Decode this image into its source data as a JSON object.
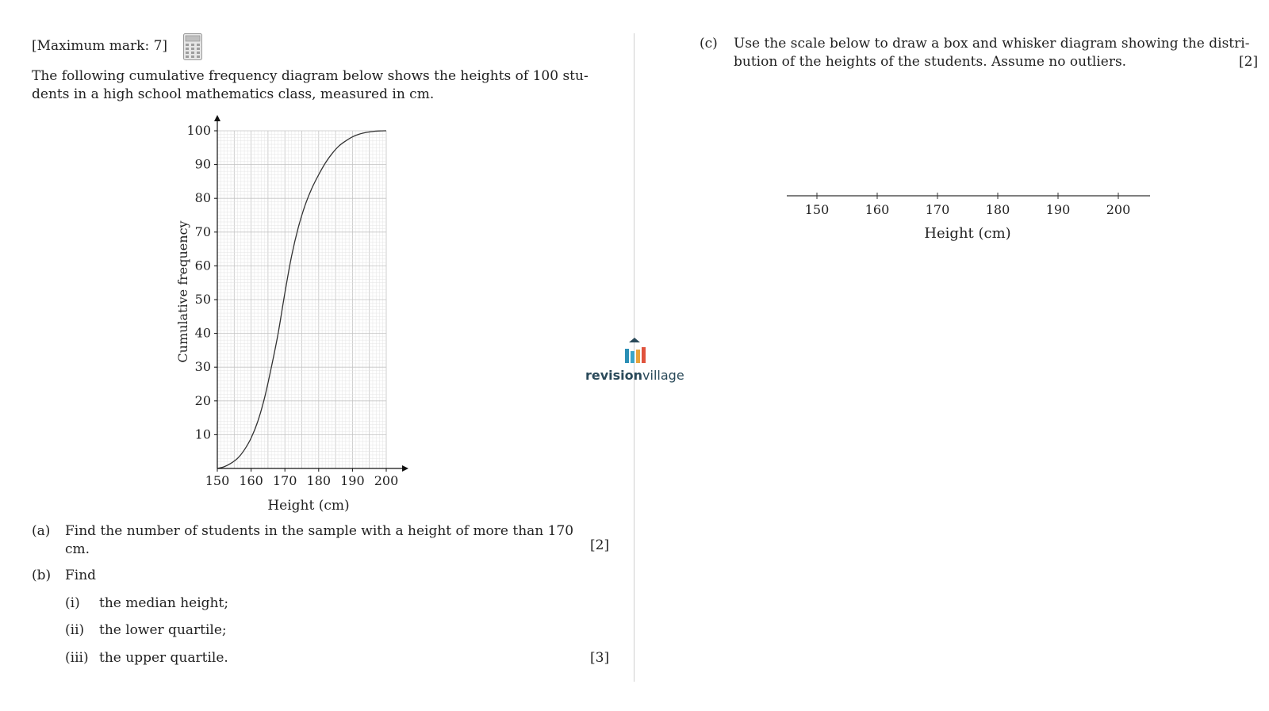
{
  "question": {
    "max_mark": "[Maximum mark: 7]",
    "calculator_icon": "calculator-icon",
    "intro_line1": "The following cumulative frequency diagram below shows the heights of 100 stu-",
    "intro_line2": "dents in a high school mathematics class, measured in cm."
  },
  "part_a": {
    "label": "(a)",
    "text_line1": "Find the number of students in the sample with a height of more than 170",
    "text_line2": "cm.",
    "marks": "[2]"
  },
  "part_b": {
    "label": "(b)",
    "text": "Find",
    "items": [
      {
        "label": "(i)",
        "text": "the median height;"
      },
      {
        "label": "(ii)",
        "text": "the lower quartile;"
      },
      {
        "label": "(iii)",
        "text": "the upper quartile."
      }
    ],
    "marks": "[3]"
  },
  "part_c": {
    "label": "(c)",
    "text_line1": "Use the scale below to draw a box and whisker diagram showing the distri-",
    "text_line2": "bution of the heights of the students. Assume no outliers.",
    "marks": "[2]",
    "scale_ticks": [
      "150",
      "160",
      "170",
      "180",
      "190",
      "200"
    ],
    "scale_label": "Height (cm)"
  },
  "logo": {
    "bold": "revision",
    "light": "village",
    "colors": [
      "#2b8fb5",
      "#3aa5c8",
      "#e8a23a",
      "#e0533d"
    ]
  },
  "chart_data": {
    "type": "line",
    "xlabel": "Height (cm)",
    "ylabel": "Cumulative frequency",
    "xlim": [
      150,
      200
    ],
    "ylim": [
      0,
      100
    ],
    "x_ticks": [
      "150",
      "160",
      "170",
      "180",
      "190",
      "200"
    ],
    "y_ticks": [
      "10",
      "20",
      "30",
      "40",
      "50",
      "60",
      "70",
      "80",
      "90",
      "100"
    ],
    "grid": true,
    "series": [
      {
        "x": [
          150,
          152,
          154,
          156,
          158,
          160,
          162,
          164,
          166,
          168,
          170,
          172,
          174,
          176,
          178,
          180,
          182,
          184,
          186,
          188,
          190,
          192,
          194,
          196,
          198,
          200
        ],
        "values": [
          0,
          0.5,
          1.5,
          3,
          5.5,
          9,
          14,
          21,
          30,
          40,
          52,
          63,
          71.5,
          78,
          83,
          87,
          90.5,
          93.3,
          95.5,
          97,
          98.2,
          99,
          99.5,
          99.8,
          99.95,
          100
        ]
      }
    ]
  }
}
